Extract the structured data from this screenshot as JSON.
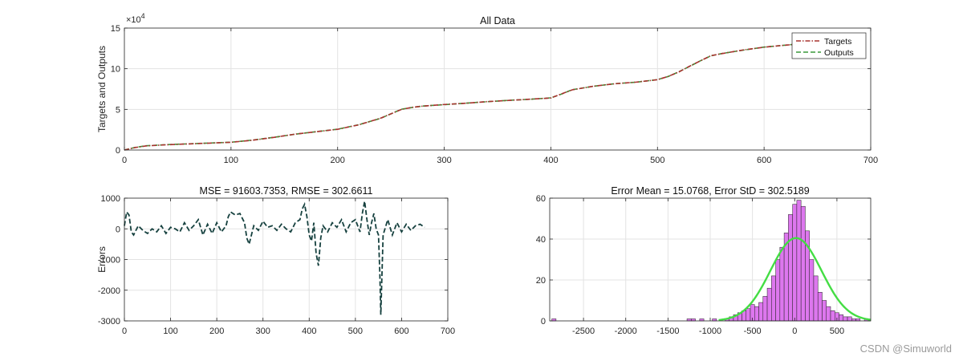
{
  "watermark": "CSDN @Simuworld",
  "chart_data": [
    {
      "id": "all-data",
      "type": "line",
      "title": "All Data",
      "xlabel": "",
      "ylabel": "Targets and Outputs",
      "xlim": [
        0,
        700
      ],
      "ylim": [
        0,
        15
      ],
      "xticks": [
        0,
        100,
        200,
        300,
        400,
        500,
        600,
        700
      ],
      "yticks": [
        0,
        5,
        10,
        15
      ],
      "exponent_base": "×10",
      "exponent_power": "4",
      "grid": true,
      "legend_position": "top-right",
      "series": [
        {
          "name": "Targets",
          "color": "#a8332f",
          "style": "dashdot",
          "x": [
            0,
            10,
            20,
            40,
            60,
            80,
            100,
            120,
            140,
            160,
            180,
            200,
            220,
            240,
            260,
            270,
            280,
            300,
            320,
            340,
            360,
            380,
            400,
            410,
            420,
            440,
            460,
            480,
            500,
            510,
            520,
            530,
            540,
            550,
            560,
            580,
            600,
            620,
            630
          ],
          "y": [
            0,
            0.3,
            0.5,
            0.65,
            0.75,
            0.85,
            0.95,
            1.2,
            1.55,
            1.95,
            2.25,
            2.55,
            3.1,
            3.9,
            5.0,
            5.25,
            5.4,
            5.6,
            5.75,
            5.95,
            6.1,
            6.25,
            6.4,
            6.9,
            7.4,
            7.85,
            8.15,
            8.35,
            8.65,
            9.05,
            9.6,
            10.3,
            10.95,
            11.6,
            11.85,
            12.3,
            12.65,
            12.9,
            13.0
          ]
        },
        {
          "name": "Outputs",
          "color": "#3a9a3a",
          "style": "dashed",
          "x": [
            0,
            10,
            20,
            40,
            60,
            80,
            100,
            120,
            140,
            160,
            180,
            200,
            220,
            240,
            260,
            270,
            280,
            300,
            320,
            340,
            360,
            380,
            400,
            410,
            420,
            440,
            460,
            480,
            500,
            510,
            520,
            530,
            540,
            550,
            560,
            580,
            600,
            620,
            630
          ],
          "y": [
            0,
            0.32,
            0.52,
            0.66,
            0.76,
            0.86,
            0.96,
            1.22,
            1.56,
            1.94,
            2.26,
            2.56,
            3.12,
            3.88,
            5.02,
            5.24,
            5.41,
            5.58,
            5.76,
            5.94,
            6.11,
            6.24,
            6.42,
            6.88,
            7.42,
            7.84,
            8.16,
            8.34,
            8.66,
            9.04,
            9.62,
            10.28,
            10.96,
            11.58,
            11.86,
            12.28,
            12.66,
            12.9,
            13.02
          ]
        }
      ]
    },
    {
      "id": "errors",
      "type": "line",
      "title": "MSE = 91603.7353, RMSE = 302.6611",
      "xlabel": "",
      "ylabel": "Errors",
      "xlim": [
        0,
        700
      ],
      "ylim": [
        -3000,
        1000
      ],
      "xticks": [
        0,
        100,
        200,
        300,
        400,
        500,
        600,
        700
      ],
      "yticks": [
        -3000,
        -2000,
        -1000,
        0,
        1000
      ],
      "grid": true,
      "series": [
        {
          "name": "Errors",
          "color": "#16413f",
          "style": "dashed",
          "x": [
            0,
            5,
            10,
            15,
            20,
            30,
            40,
            50,
            60,
            70,
            80,
            90,
            100,
            110,
            120,
            130,
            140,
            150,
            160,
            170,
            180,
            190,
            200,
            210,
            220,
            225,
            230,
            240,
            250,
            260,
            265,
            270,
            275,
            280,
            290,
            300,
            310,
            320,
            330,
            340,
            350,
            360,
            370,
            380,
            385,
            390,
            395,
            400,
            405,
            410,
            415,
            420,
            425,
            430,
            440,
            450,
            460,
            470,
            480,
            490,
            500,
            510,
            515,
            520,
            525,
            530,
            535,
            540,
            545,
            550,
            553,
            555,
            560,
            570,
            580,
            590,
            600,
            610,
            620,
            630,
            640,
            650
          ],
          "y": [
            100,
            550,
            450,
            -100,
            -200,
            100,
            -50,
            -150,
            0,
            -100,
            100,
            -150,
            50,
            0,
            -100,
            200,
            -50,
            100,
            300,
            -200,
            150,
            -150,
            200,
            -100,
            100,
            400,
            550,
            450,
            500,
            200,
            -300,
            -500,
            -200,
            100,
            -50,
            250,
            50,
            100,
            -50,
            150,
            0,
            -100,
            200,
            300,
            650,
            800,
            400,
            -200,
            -400,
            200,
            -800,
            -1200,
            -300,
            100,
            -100,
            200,
            50,
            300,
            -100,
            200,
            300,
            -100,
            500,
            900,
            300,
            -200,
            200,
            500,
            0,
            -200,
            -1500,
            -2800,
            -200,
            300,
            -200,
            200,
            -100,
            150,
            -50,
            100,
            150,
            50
          ]
        }
      ]
    },
    {
      "id": "error-histogram",
      "type": "bar",
      "title": "Error Mean = 15.0768, Error StD = 302.5189",
      "xlabel": "",
      "ylabel": "",
      "xlim": [
        -2900,
        900
      ],
      "ylim": [
        0,
        60
      ],
      "xticks": [
        -2500,
        -2000,
        -1500,
        -1000,
        -500,
        0,
        500
      ],
      "yticks": [
        0,
        20,
        40,
        60
      ],
      "grid": true,
      "bar_color": "#dd77ee",
      "fit_color": "#44dd44",
      "bin_width": 50,
      "bins": [
        {
          "x": -2850,
          "count": 1
        },
        {
          "x": -1250,
          "count": 1
        },
        {
          "x": -1200,
          "count": 1
        },
        {
          "x": -1100,
          "count": 1
        },
        {
          "x": -950,
          "count": 1
        },
        {
          "x": -800,
          "count": 1
        },
        {
          "x": -750,
          "count": 2
        },
        {
          "x": -700,
          "count": 3
        },
        {
          "x": -650,
          "count": 4
        },
        {
          "x": -600,
          "count": 5
        },
        {
          "x": -550,
          "count": 6
        },
        {
          "x": -500,
          "count": 8
        },
        {
          "x": -450,
          "count": 7
        },
        {
          "x": -400,
          "count": 9
        },
        {
          "x": -350,
          "count": 12
        },
        {
          "x": -300,
          "count": 16
        },
        {
          "x": -250,
          "count": 22
        },
        {
          "x": -200,
          "count": 30
        },
        {
          "x": -150,
          "count": 36
        },
        {
          "x": -100,
          "count": 43
        },
        {
          "x": -50,
          "count": 52
        },
        {
          "x": 0,
          "count": 57
        },
        {
          "x": 50,
          "count": 59
        },
        {
          "x": 100,
          "count": 56
        },
        {
          "x": 150,
          "count": 44
        },
        {
          "x": 200,
          "count": 30
        },
        {
          "x": 250,
          "count": 22
        },
        {
          "x": 300,
          "count": 14
        },
        {
          "x": 350,
          "count": 10
        },
        {
          "x": 400,
          "count": 7
        },
        {
          "x": 450,
          "count": 5
        },
        {
          "x": 500,
          "count": 4
        },
        {
          "x": 550,
          "count": 3
        },
        {
          "x": 600,
          "count": 2
        },
        {
          "x": 650,
          "count": 2
        },
        {
          "x": 700,
          "count": 1
        },
        {
          "x": 750,
          "count": 1
        },
        {
          "x": 850,
          "count": 1
        }
      ],
      "fit": {
        "mean": 15.0768,
        "std": 302.5189,
        "peak": 40.5
      }
    }
  ]
}
